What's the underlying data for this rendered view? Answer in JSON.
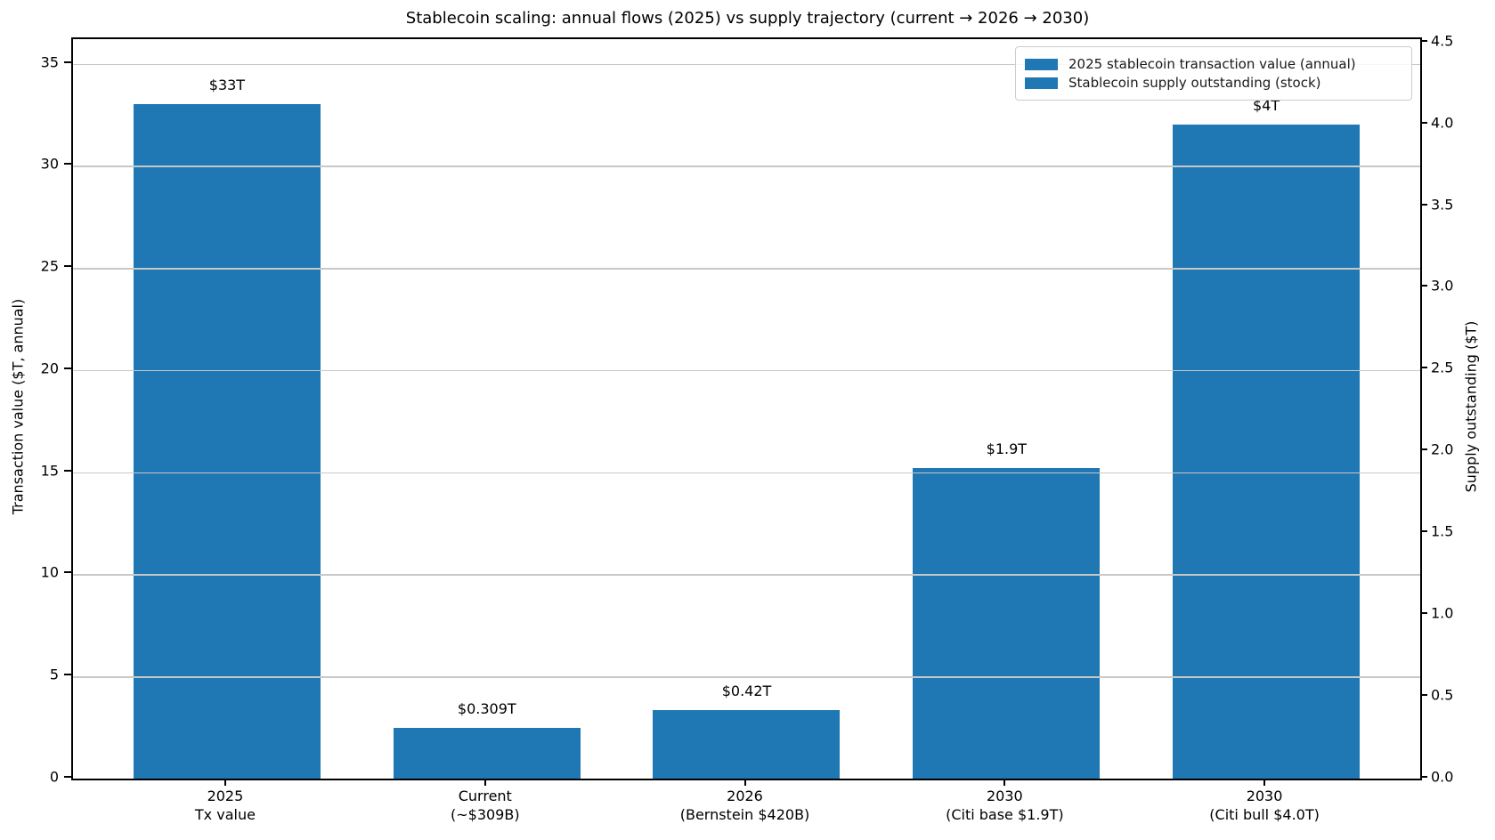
{
  "chart_data": {
    "type": "bar",
    "title": "Stablecoin scaling: annual flows (2025) vs supply trajectory (current → 2026 → 2030)",
    "legend": {
      "position": "upper right",
      "entries": [
        {
          "label": "2025 stablecoin transaction value (annual)",
          "color": "#1f77b4"
        },
        {
          "label": "Stablecoin supply outstanding (stock)",
          "color": "#1f77b4"
        }
      ]
    },
    "left_axis": {
      "label": "Transaction value ($T, annual)",
      "ticks": [
        0,
        5,
        10,
        15,
        20,
        25,
        30,
        35
      ],
      "range": [
        0,
        36.2
      ]
    },
    "right_axis": {
      "label": "Supply outstanding ($T)",
      "ticks": [
        0.0,
        0.5,
        1.0,
        1.5,
        2.0,
        2.5,
        3.0,
        3.5,
        4.0,
        4.5
      ],
      "range": [
        0,
        4.52
      ]
    },
    "categories": [
      [
        "2025",
        "Tx value"
      ],
      [
        "Current",
        "(~$309B)"
      ],
      [
        "2026",
        "(Bernstein $420B)"
      ],
      [
        "2030",
        "(Citi base $1.9T)"
      ],
      [
        "2030",
        "(Citi bull $4.0T)"
      ]
    ],
    "bars": [
      {
        "value": 33,
        "axis": "left",
        "annotation": "$33T",
        "series": "2025 stablecoin transaction value (annual)"
      },
      {
        "value": 0.309,
        "axis": "right",
        "annotation": "$0.309T",
        "series": "Stablecoin supply outstanding (stock)"
      },
      {
        "value": 0.42,
        "axis": "right",
        "annotation": "$0.42T",
        "series": "Stablecoin supply outstanding (stock)"
      },
      {
        "value": 1.9,
        "axis": "right",
        "annotation": "$1.9T",
        "series": "Stablecoin supply outstanding (stock)"
      },
      {
        "value": 4.0,
        "axis": "right",
        "annotation": "$4T",
        "series": "Stablecoin supply outstanding (stock)"
      }
    ],
    "grid": {
      "axis": "left",
      "horizontal": true,
      "color": "#c8c8c8",
      "drawn_over_bars": true
    },
    "colors": {
      "bar": "#1f77b4",
      "grid": "#c8c8c8",
      "spine": "#000000",
      "background": "#ffffff"
    }
  }
}
